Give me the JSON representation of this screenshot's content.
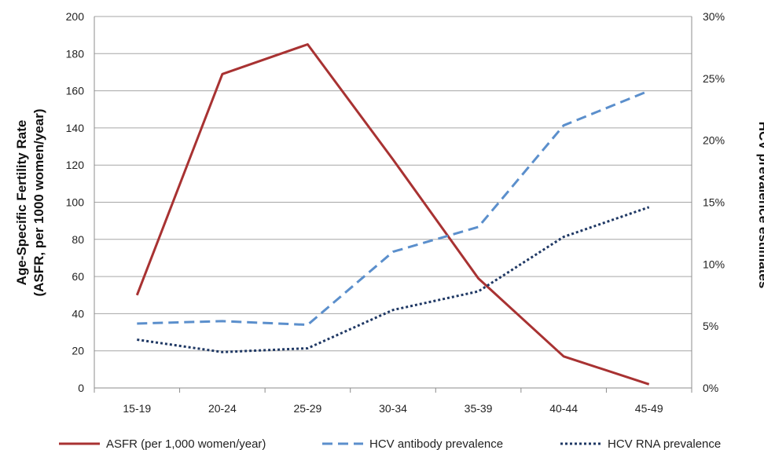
{
  "chart_data": {
    "type": "line",
    "categories": [
      "15-19",
      "20-24",
      "25-29",
      "30-34",
      "35-39",
      "40-44",
      "45-49"
    ],
    "y_left": {
      "label_line1": "Age-Specific Fertility Rate",
      "label_line2": "(ASFR, per 1000 women/year)",
      "ylim": [
        0,
        200
      ],
      "ticks": [
        "0",
        "20",
        "40",
        "60",
        "80",
        "100",
        "120",
        "140",
        "160",
        "180",
        "200"
      ]
    },
    "y_right": {
      "label": "HCV prevalence estimates",
      "ylim": [
        0,
        0.3
      ],
      "ticks": [
        "0%",
        "5%",
        "10%",
        "15%",
        "20%",
        "25%",
        "30%"
      ]
    },
    "grid": true,
    "legend_position": "bottom",
    "series": [
      {
        "name": "ASFR (per 1,000 women/year)",
        "axis": "left",
        "values": [
          50,
          169,
          185,
          123,
          59,
          17,
          2
        ],
        "color": "#a83232",
        "dash": "solid"
      },
      {
        "name": "HCV antibody prevalence",
        "axis": "right",
        "values": [
          0.052,
          0.054,
          0.051,
          0.11,
          0.13,
          0.212,
          0.24
        ],
        "color": "#5b8fcc",
        "dash": "dashed"
      },
      {
        "name": "HCV RNA prevalence",
        "axis": "right",
        "values": [
          0.039,
          0.029,
          0.032,
          0.063,
          0.078,
          0.122,
          0.146
        ],
        "color": "#1f3864",
        "dash": "dotted"
      }
    ]
  }
}
